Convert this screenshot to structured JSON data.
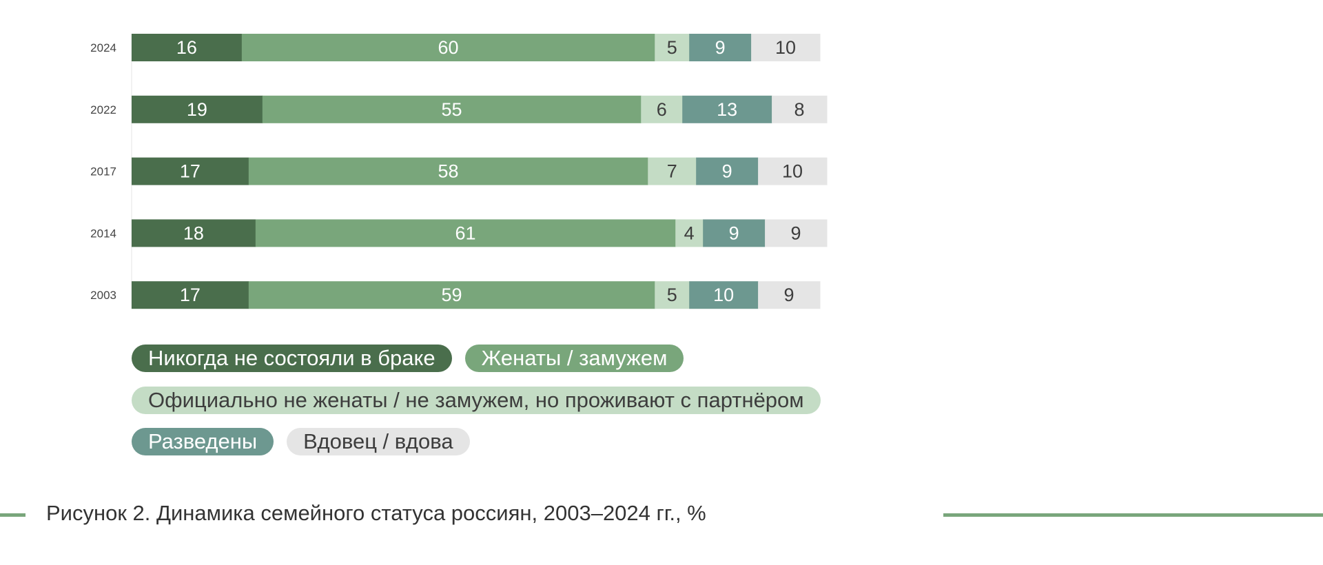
{
  "chart_data": {
    "type": "bar",
    "orientation": "horizontal",
    "stacked": true,
    "categories": [
      "2024",
      "2022",
      "2017",
      "2014",
      "2003"
    ],
    "series": [
      {
        "name": "Никогда не состояли в браке",
        "color": "#4a6e4c",
        "text_color": "#ffffff",
        "values": [
          16,
          19,
          17,
          18,
          17
        ]
      },
      {
        "name": "Женаты / замужем",
        "color": "#79a67b",
        "text_color": "#ffffff",
        "values": [
          60,
          55,
          58,
          61,
          59
        ]
      },
      {
        "name": "Официально не женаты / не замужем, но проживают с партнёром",
        "color": "#c4dcc5",
        "text_color": "#3d3d3d",
        "values": [
          5,
          6,
          7,
          4,
          5
        ]
      },
      {
        "name": "Разведены",
        "color": "#6d9890",
        "text_color": "#ffffff",
        "values": [
          9,
          13,
          9,
          9,
          10
        ]
      },
      {
        "name": "Вдовец / вдова",
        "color": "#e5e5e5",
        "text_color": "#3d3d3d",
        "values": [
          10,
          8,
          10,
          9,
          9
        ]
      }
    ],
    "xlim": [
      0,
      100
    ],
    "grid": false,
    "legend_placement": "bottom",
    "title": "Рисунок 2. Динамика семейного статуса россиян, 2003–2024 гг., %"
  },
  "accent_color": "#79a67b"
}
